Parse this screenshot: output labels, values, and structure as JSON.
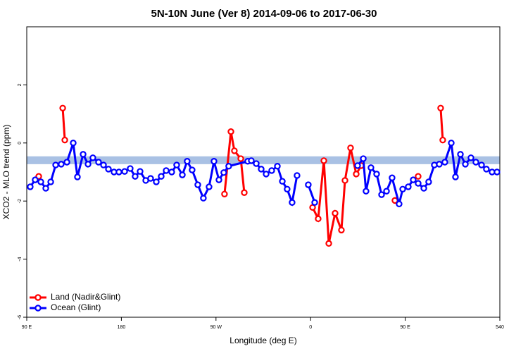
{
  "chart_data": {
    "type": "line",
    "title": "5N-10N June (Ver 8)   2014-09-06 to 2017-06-30",
    "x_label": "Longitude (deg E)",
    "y_label": "XCO2 - MLO trend (ppm)",
    "xlim": [
      90,
      540
    ],
    "ylim": [
      -6,
      4
    ],
    "xticks": [
      {
        "value": 90,
        "label": "90 E"
      },
      180,
      {
        "value": 270,
        "label": "90 W"
      },
      {
        "value": 360,
        "label": "0"
      },
      {
        "value": 450,
        "label": "90 E"
      },
      540
    ],
    "yticks": [
      -6,
      -4,
      -2,
      0,
      2
    ],
    "band": {
      "ylim": [
        -0.73,
        -0.46
      ],
      "color": "#a9c1e4"
    },
    "legend": "bottom-left",
    "series": [
      {
        "name": "Land (Nadir&Glint)",
        "color": "#ff0000",
        "x": [
          101.4,
          null,
          124.2,
          126.2,
          null,
          278.1,
          284.2,
          287.5,
          293.6,
          296.9,
          null,
          361.9,
          367.2,
          372.6,
          377.3,
          383.3,
          389.3,
          392.7,
          398.0,
          403.4,
          408.1,
          null,
          440.2,
          null,
          462.3,
          null,
          483.7,
          485.7
        ],
        "values": [
          -1.15,
          null,
          1.2,
          0.1,
          null,
          -1.76,
          0.39,
          -0.27,
          -0.54,
          -1.71,
          null,
          -2.22,
          -2.61,
          -0.61,
          -3.46,
          -2.42,
          -3.0,
          -1.29,
          -0.17,
          -1.07,
          -0.78,
          null,
          -1.98,
          null,
          -1.15,
          null,
          1.2,
          0.1
        ]
      },
      {
        "name": "Ocean (Glint)",
        "color": "#0000ff",
        "x": [
          93.3,
          98.0,
          103.4,
          108.1,
          112.8,
          117.5,
          122.8,
          128.2,
          134.2,
          138.2,
          143.6,
          148.3,
          152.9,
          158.3,
          163.0,
          167.7,
          173.0,
          177.7,
          183.1,
          188.4,
          193.1,
          197.8,
          203.2,
          207.8,
          213.2,
          217.9,
          222.6,
          227.9,
          232.6,
          238.0,
          242.6,
          247.3,
          252.7,
          258.0,
          263.4,
          268.1,
          272.8,
          277.4,
          282.1,
          300.2,
          303.6,
          308.3,
          313.0,
          317.7,
          323.0,
          328.4,
          333.1,
          337.7,
          342.4,
          347.1,
          null,
          357.8,
          363.9,
          null,
          404.7,
          410.1,
          412.7,
          417.4,
          422.8,
          427.5,
          432.2,
          437.5,
          444.2,
          447.6,
          452.9,
          457.6,
          462.3,
          467.7,
          472.3,
          477.7,
          482.4,
          487.7,
          493.8,
          497.8,
          502.5,
          507.2,
          512.5,
          517.2,
          522.6,
          527.2,
          532.6,
          537.3
        ],
        "values": [
          -1.51,
          -1.27,
          -1.34,
          -1.56,
          -1.34,
          -0.76,
          -0.73,
          -0.66,
          0.0,
          -1.17,
          -0.39,
          -0.73,
          -0.51,
          -0.66,
          -0.76,
          -0.9,
          -1.0,
          -1.0,
          -0.98,
          -0.88,
          -1.15,
          -0.98,
          -1.29,
          -1.22,
          -1.34,
          -1.15,
          -0.95,
          -1.0,
          -0.76,
          -1.1,
          -0.63,
          -0.93,
          -1.44,
          -1.9,
          -1.51,
          -0.63,
          -1.27,
          -1.02,
          -0.8,
          -0.63,
          -0.61,
          -0.71,
          -0.9,
          -1.07,
          -0.95,
          -0.8,
          -1.32,
          -1.59,
          -2.05,
          -1.12,
          null,
          -1.44,
          -2.05,
          null,
          -0.78,
          -0.54,
          -1.66,
          -0.85,
          -1.07,
          -1.78,
          -1.66,
          -1.2,
          -2.1,
          -1.59,
          -1.51,
          -1.27,
          -1.39,
          -1.56,
          -1.34,
          -0.76,
          -0.73,
          -0.66,
          0.0,
          -1.17,
          -0.39,
          -0.73,
          -0.51,
          -0.66,
          -0.76,
          -0.9,
          -1.0,
          -1.0
        ]
      }
    ]
  }
}
